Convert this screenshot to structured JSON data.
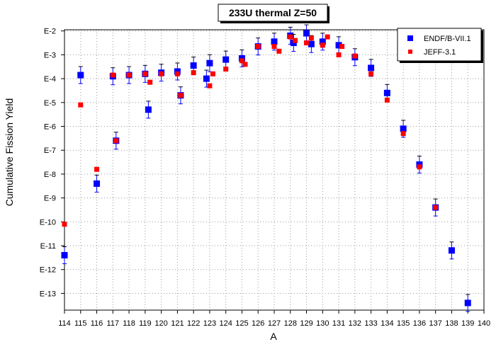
{
  "chart_data": {
    "type": "scatter",
    "title": "233U thermal Z=50",
    "xlabel": "A",
    "ylabel": "Cumulative Fission Yield",
    "x_range": [
      114,
      140
    ],
    "y_range_exponent": [
      -13.7,
      -1.95
    ],
    "y_scale": "log",
    "x_tick_labels": [
      "114",
      "115",
      "116",
      "117",
      "118",
      "119",
      "120",
      "121",
      "122",
      "123",
      "124",
      "125",
      "126",
      "127",
      "128",
      "129",
      "130",
      "131",
      "132",
      "133",
      "134",
      "135",
      "136",
      "137",
      "138",
      "139",
      "140"
    ],
    "y_tick_labels": [
      "E-2",
      "E-3",
      "E-4",
      "E-5",
      "E-6",
      "E-7",
      "E-8",
      "E-9",
      "E-10",
      "E-11",
      "E-12",
      "E-13"
    ],
    "grid": true,
    "legend_position": "top-right",
    "series": [
      {
        "name": "ENDF/B-VII.1",
        "color": "#0000ff",
        "marker": "square",
        "points": [
          {
            "x": 114,
            "y": -11.4
          },
          {
            "x": 115,
            "y": -3.85
          },
          {
            "x": 116,
            "y": -8.4
          },
          {
            "x": 117,
            "y": -3.9
          },
          {
            "x": 118,
            "y": -3.85
          },
          {
            "x": 119,
            "y": -3.8
          },
          {
            "x": 119.2,
            "y": -5.3
          },
          {
            "x": 117.2,
            "y": -6.6
          },
          {
            "x": 120,
            "y": -3.75
          },
          {
            "x": 121,
            "y": -3.7
          },
          {
            "x": 121.2,
            "y": -4.7
          },
          {
            "x": 122,
            "y": -3.45
          },
          {
            "x": 122.8,
            "y": -4.0
          },
          {
            "x": 123,
            "y": -3.35
          },
          {
            "x": 124,
            "y": -3.2
          },
          {
            "x": 125,
            "y": -3.15
          },
          {
            "x": 126,
            "y": -2.65
          },
          {
            "x": 127,
            "y": -2.45
          },
          {
            "x": 128,
            "y": -2.2
          },
          {
            "x": 128.2,
            "y": -2.5
          },
          {
            "x": 129,
            "y": -2.1
          },
          {
            "x": 129.3,
            "y": -2.55
          },
          {
            "x": 130,
            "y": -2.45
          },
          {
            "x": 131,
            "y": -2.6
          },
          {
            "x": 132,
            "y": -3.1
          },
          {
            "x": 133,
            "y": -3.55
          },
          {
            "x": 134,
            "y": -4.6
          },
          {
            "x": 135,
            "y": -6.1
          },
          {
            "x": 136,
            "y": -7.6
          },
          {
            "x": 137,
            "y": -9.4
          },
          {
            "x": 138,
            "y": -11.2
          },
          {
            "x": 139,
            "y": -13.4
          }
        ]
      },
      {
        "name": "JEFF-3.1",
        "color": "#ff0000",
        "marker": "square",
        "points": [
          {
            "x": 114,
            "y": -10.1
          },
          {
            "x": 115,
            "y": -5.1
          },
          {
            "x": 116,
            "y": -7.8
          },
          {
            "x": 117,
            "y": -3.85
          },
          {
            "x": 117.2,
            "y": -6.6
          },
          {
            "x": 118,
            "y": -3.85
          },
          {
            "x": 119,
            "y": -3.8
          },
          {
            "x": 119.3,
            "y": -4.15
          },
          {
            "x": 120,
            "y": -3.8
          },
          {
            "x": 121,
            "y": -3.8
          },
          {
            "x": 121.2,
            "y": -4.7
          },
          {
            "x": 122,
            "y": -3.75
          },
          {
            "x": 123,
            "y": -4.3
          },
          {
            "x": 123.2,
            "y": -3.8
          },
          {
            "x": 124,
            "y": -3.6
          },
          {
            "x": 125,
            "y": -3.25
          },
          {
            "x": 125.2,
            "y": -3.4
          },
          {
            "x": 126,
            "y": -2.65
          },
          {
            "x": 127,
            "y": -2.65
          },
          {
            "x": 127.3,
            "y": -2.85
          },
          {
            "x": 128,
            "y": -2.25
          },
          {
            "x": 128.3,
            "y": -2.4
          },
          {
            "x": 129,
            "y": -2.5
          },
          {
            "x": 129.3,
            "y": -2.3
          },
          {
            "x": 130,
            "y": -2.6
          },
          {
            "x": 130.3,
            "y": -2.25
          },
          {
            "x": 131,
            "y": -3.0
          },
          {
            "x": 131.2,
            "y": -2.65
          },
          {
            "x": 132,
            "y": -3.05
          },
          {
            "x": 133,
            "y": -3.8
          },
          {
            "x": 134,
            "y": -4.9
          },
          {
            "x": 135,
            "y": -6.3
          },
          {
            "x": 136,
            "y": -7.7
          },
          {
            "x": 137,
            "y": -9.4
          }
        ]
      }
    ]
  }
}
